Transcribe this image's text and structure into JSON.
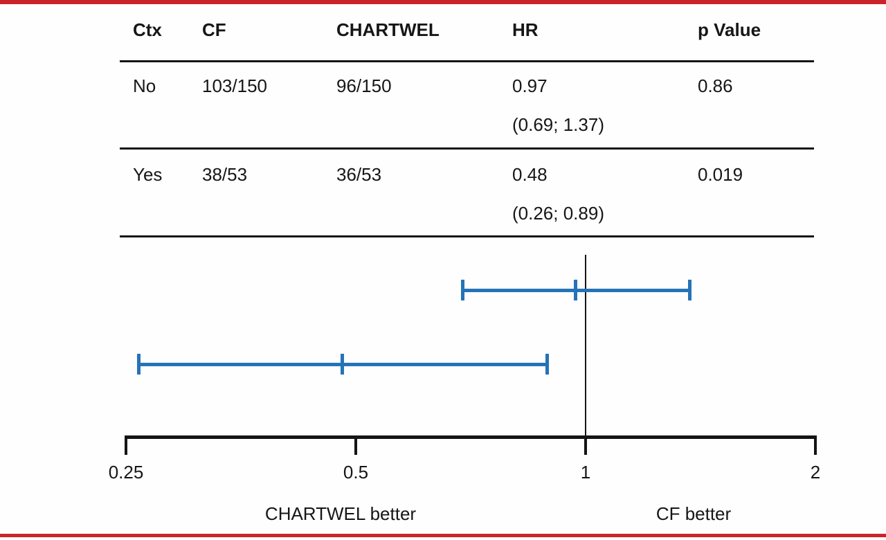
{
  "colors": {
    "accent_red": "#cb2329",
    "bar_blue": "#2573b7",
    "line_black": "#141414"
  },
  "table": {
    "headers": [
      "Ctx",
      "CF",
      "CHARTWEL",
      "HR",
      "p Value"
    ],
    "rows": [
      {
        "ctx": "No",
        "cf": "103/150",
        "chartwel": "96/150",
        "hr": "0.97",
        "ci": "(0.69; 1.37)",
        "p": "0.86"
      },
      {
        "ctx": "Yes",
        "cf": "38/53",
        "chartwel": "36/53",
        "hr": "0.48",
        "ci": "(0.26; 0.89)",
        "p": "0.019"
      }
    ]
  },
  "chart_data": {
    "type": "forest",
    "x_scale": "log",
    "x_range": [
      0.25,
      2
    ],
    "x_ticks": [
      {
        "value": 0.25,
        "label": "0.25"
      },
      {
        "value": 0.5,
        "label": "0.5"
      },
      {
        "value": 1,
        "label": "1"
      },
      {
        "value": 2,
        "label": "2"
      }
    ],
    "ref_line": 1,
    "series": [
      {
        "group": "No",
        "hr": 0.97,
        "ci_low": 0.69,
        "ci_high": 1.37
      },
      {
        "group": "Yes",
        "hr": 0.48,
        "ci_low": 0.26,
        "ci_high": 0.89
      }
    ],
    "left_label": "CHARTWEL better",
    "right_label": "CF better",
    "bar_color": "#2573b7",
    "legend_position": "none",
    "grid": false
  }
}
